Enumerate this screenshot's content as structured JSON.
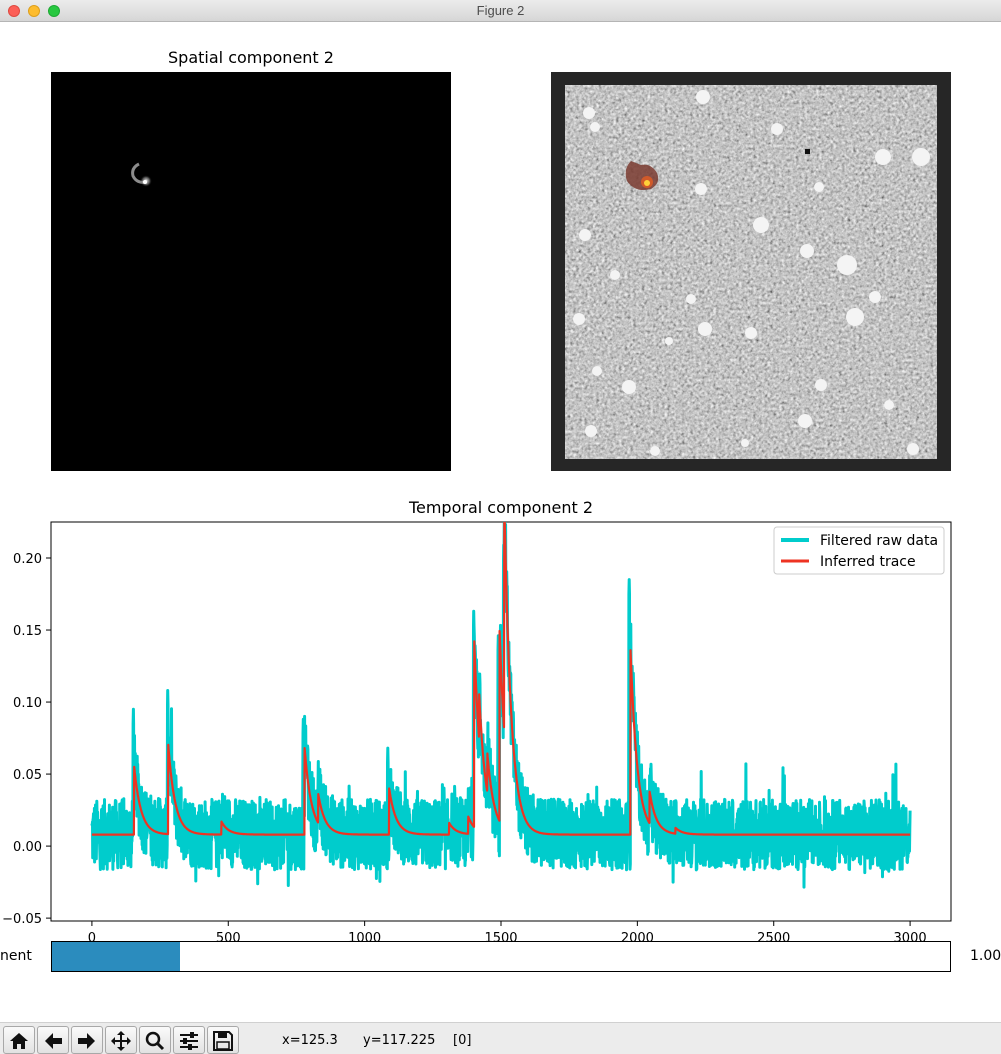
{
  "window": {
    "title": "Figure 2"
  },
  "spatial": {
    "left_title": "Spatial component 2"
  },
  "temporal": {
    "title": "Temporal component 2"
  },
  "chart_data": {
    "type": "line",
    "title": "Temporal component 2",
    "xlabel": "",
    "ylabel": "",
    "xlim": [
      -150,
      3150
    ],
    "ylim": [
      -0.052,
      0.225
    ],
    "xticks": [
      0,
      500,
      1000,
      1500,
      2000,
      2500,
      3000
    ],
    "xtick_labels": [
      "0",
      "500",
      "1000",
      "1500",
      "2000",
      "2500",
      "3000"
    ],
    "yticks": [
      -0.05,
      0.0,
      0.05,
      0.1,
      0.15,
      0.2
    ],
    "ytick_labels": [
      "−0.05",
      "0.00",
      "0.05",
      "0.10",
      "0.15",
      "0.20"
    ],
    "legend": {
      "placement": "top-right",
      "entries": [
        "Filtered raw data",
        "Inferred trace"
      ]
    },
    "series": [
      {
        "name": "Filtered raw data",
        "color": "#00cccc",
        "noise_band": [
          -0.025,
          0.045
        ],
        "peaks": [
          [
            152,
            0.095
          ],
          [
            170,
            0.05
          ],
          [
            278,
            0.108
          ],
          [
            292,
            0.06
          ],
          [
            775,
            0.088
          ],
          [
            790,
            0.06
          ],
          [
            835,
            0.045
          ],
          [
            1085,
            0.068
          ],
          [
            1400,
            0.163
          ],
          [
            1410,
            0.12
          ],
          [
            1490,
            0.146
          ],
          [
            1510,
            0.209
          ],
          [
            1970,
            0.185
          ],
          [
            1985,
            0.12
          ],
          [
            2050,
            0.05
          ]
        ],
        "x_range": [
          0,
          3000
        ]
      },
      {
        "name": "Inferred trace",
        "color": "#ee3322",
        "baseline": 0.008,
        "peaks": [
          [
            155,
            0.055
          ],
          [
            280,
            0.07
          ],
          [
            475,
            0.017
          ],
          [
            780,
            0.068
          ],
          [
            830,
            0.028
          ],
          [
            1090,
            0.04
          ],
          [
            1310,
            0.016
          ],
          [
            1380,
            0.02
          ],
          [
            1402,
            0.137
          ],
          [
            1420,
            0.04
          ],
          [
            1450,
            0.035
          ],
          [
            1495,
            0.14
          ],
          [
            1512,
            0.17
          ],
          [
            1975,
            0.136
          ],
          [
            2045,
            0.03
          ],
          [
            2140,
            0.012
          ]
        ],
        "decay": 25
      }
    ]
  },
  "slider": {
    "label": "nent",
    "value": 1.0,
    "value_label": "1.00",
    "fraction": 0.143
  },
  "toolbar": {
    "buttons": [
      "home-icon",
      "back-arrow-icon",
      "forward-arrow-icon",
      "pan-icon",
      "zoom-icon",
      "configure-icon",
      "save-icon"
    ],
    "x_readout": "x=125.3",
    "y_readout": "y=117.225",
    "value_readout": "[0]"
  }
}
